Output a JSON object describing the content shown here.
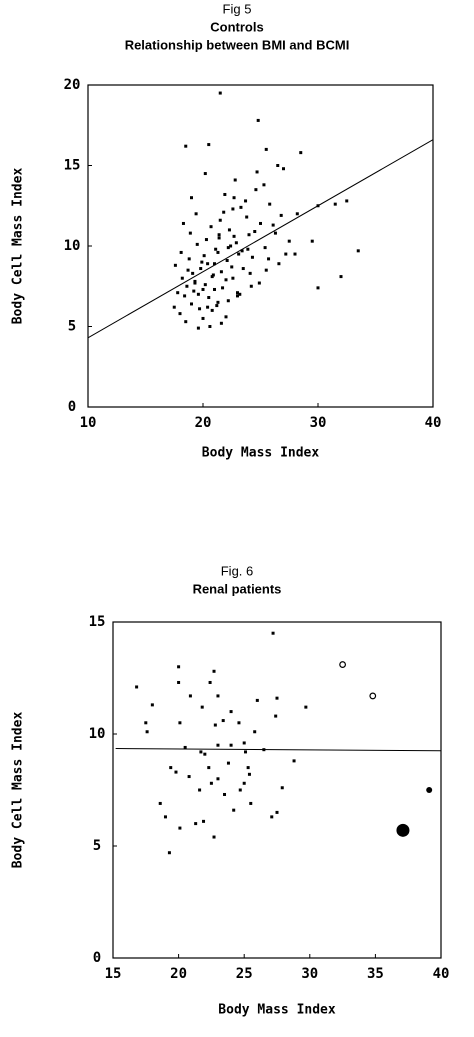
{
  "chart_data": [
    {
      "type": "scatter",
      "title_lines": [
        "Fig 5",
        "Controls",
        "Relationship between BMI and BCMI"
      ],
      "x_label": "Body Mass Index",
      "y_label": "Body Cell Mass Index",
      "xlim": [
        10,
        40
      ],
      "ylim": [
        0,
        20
      ],
      "xticks": [
        10,
        20,
        30,
        40
      ],
      "yticks": [
        0,
        5,
        10,
        15,
        20
      ],
      "grid": false,
      "series": [
        {
          "marker": "square",
          "color": "#000000",
          "x": [
            17.5,
            17.8,
            18.0,
            18.2,
            18.4,
            18.6,
            18.8,
            19.0,
            19.1,
            19.3,
            19.5,
            19.6,
            19.8,
            20.0,
            20.1,
            20.2,
            20.4,
            20.5,
            20.7,
            20.8,
            21.0,
            21.1,
            21.3,
            21.4,
            21.6,
            21.8,
            22.0,
            22.1,
            22.3,
            22.5,
            22.7,
            22.9,
            23.1,
            23.3,
            23.5,
            23.8,
            24.0,
            24.3,
            24.6,
            25.0,
            25.4,
            25.8,
            26.3,
            26.8,
            27.5,
            28.2,
            17.6,
            18.1,
            18.5,
            18.9,
            19.2,
            19.4,
            19.7,
            19.9,
            20.3,
            20.6,
            20.9,
            21.2,
            21.5,
            21.7,
            21.9,
            22.2,
            22.4,
            22.6,
            22.8,
            23.0,
            23.4,
            23.7,
            24.1,
            24.5,
            24.9,
            25.3,
            25.7,
            26.1,
            26.6,
            27.2,
            18.3,
            19.0,
            19.6,
            20.2,
            20.8,
            21.4,
            22.0,
            22.6,
            23.2,
            23.9,
            24.7,
            25.5,
            19.3,
            20.4,
            21.0,
            21.6,
            22.2,
            23.0,
            18.7,
            20.0,
            21.3,
            22.7,
            24.2,
            21.5,
            18.5,
            20.5,
            24.8,
            28.5,
            33.5,
            32.0,
            31.5,
            30.0,
            32.5,
            30.0,
            29.5,
            28.0,
            26.5,
            27.0,
            25.5
          ],
          "y": [
            6.2,
            7.1,
            5.8,
            8.0,
            6.9,
            7.5,
            9.2,
            6.4,
            8.3,
            7.8,
            10.1,
            7.0,
            8.6,
            5.5,
            9.4,
            7.6,
            8.9,
            6.8,
            11.2,
            8.1,
            7.3,
            9.8,
            6.5,
            10.5,
            8.4,
            12.1,
            7.9,
            9.1,
            11.0,
            8.7,
            13.0,
            10.2,
            9.5,
            12.4,
            8.6,
            11.8,
            10.7,
            9.3,
            13.5,
            11.4,
            9.9,
            12.6,
            10.8,
            11.9,
            10.3,
            12.0,
            8.8,
            9.6,
            5.3,
            10.8,
            7.2,
            12.0,
            6.1,
            9.0,
            10.4,
            5.0,
            8.2,
            6.3,
            11.6,
            7.4,
            13.2,
            6.6,
            10.0,
            8.0,
            14.1,
            7.1,
            9.7,
            12.8,
            8.3,
            10.9,
            7.7,
            13.8,
            9.2,
            11.3,
            8.9,
            9.5,
            11.4,
            13.0,
            4.9,
            14.5,
            6.0,
            10.7,
            5.6,
            12.3,
            7.0,
            9.8,
            14.6,
            8.5,
            7.7,
            6.2,
            8.9,
            5.2,
            9.9,
            6.9,
            8.5,
            7.3,
            9.6,
            10.6,
            7.5,
            19.5,
            16.2,
            16.3,
            17.8,
            15.8,
            9.7,
            8.1,
            12.6,
            12.5,
            12.8,
            7.4,
            10.3,
            9.5,
            15.0,
            14.8,
            16.0
          ]
        }
      ],
      "fit_line": {
        "x": [
          10,
          40
        ],
        "y": [
          4.3,
          16.6
        ]
      }
    },
    {
      "type": "scatter",
      "title_lines": [
        "Fig. 6",
        "Renal patients"
      ],
      "x_label": "Body Mass Index",
      "y_label": "Body Cell Mass Index",
      "xlim": [
        15,
        40
      ],
      "ylim": [
        0,
        15
      ],
      "xticks": [
        15,
        20,
        25,
        30,
        35,
        40
      ],
      "yticks": [
        0,
        5,
        10,
        15
      ],
      "grid": false,
      "series": [
        {
          "marker": "square",
          "color": "#000000",
          "x": [
            16.8,
            17.5,
            17.6,
            18.0,
            18.6,
            19.0,
            19.3,
            19.4,
            19.8,
            20.0,
            20.0,
            20.1,
            20.1,
            20.5,
            20.8,
            20.9,
            21.3,
            21.6,
            21.7,
            21.8,
            21.9,
            22.0,
            22.3,
            22.4,
            22.5,
            22.7,
            22.7,
            22.8,
            23.0,
            23.0,
            23.0,
            23.4,
            23.5,
            23.8,
            24.0,
            24.0,
            24.2,
            24.6,
            24.7,
            25.0,
            25.0,
            25.1,
            25.3,
            25.4,
            25.5,
            25.8,
            26.0,
            26.5,
            27.1,
            27.2,
            27.4,
            27.5,
            27.9,
            27.5,
            28.8,
            29.7
          ],
          "y": [
            12.1,
            10.5,
            10.1,
            11.3,
            6.9,
            6.3,
            4.7,
            8.5,
            8.3,
            13.0,
            12.3,
            5.8,
            10.5,
            9.4,
            8.1,
            11.7,
            6.0,
            7.5,
            9.2,
            11.2,
            6.1,
            9.1,
            8.5,
            12.3,
            7.8,
            12.8,
            5.4,
            10.4,
            11.7,
            8.0,
            9.5,
            10.6,
            7.3,
            8.7,
            11.0,
            9.5,
            6.6,
            10.5,
            7.5,
            9.6,
            7.8,
            9.2,
            8.5,
            8.2,
            6.9,
            10.1,
            11.5,
            9.3,
            6.3,
            14.5,
            10.8,
            11.6,
            7.6,
            6.5,
            8.8,
            11.2
          ]
        },
        {
          "marker": "circle-open",
          "color": "#000000",
          "x": [
            32.5,
            34.8
          ],
          "y": [
            13.1,
            11.7
          ]
        },
        {
          "marker": "circle-small",
          "color": "#000000",
          "x": [
            39.1
          ],
          "y": [
            7.5
          ]
        },
        {
          "marker": "circle-large",
          "color": "#000000",
          "x": [
            37.1
          ],
          "y": [
            5.7
          ]
        }
      ],
      "fit_line": {
        "x": [
          15.2,
          40
        ],
        "y": [
          9.35,
          9.25
        ]
      }
    }
  ]
}
